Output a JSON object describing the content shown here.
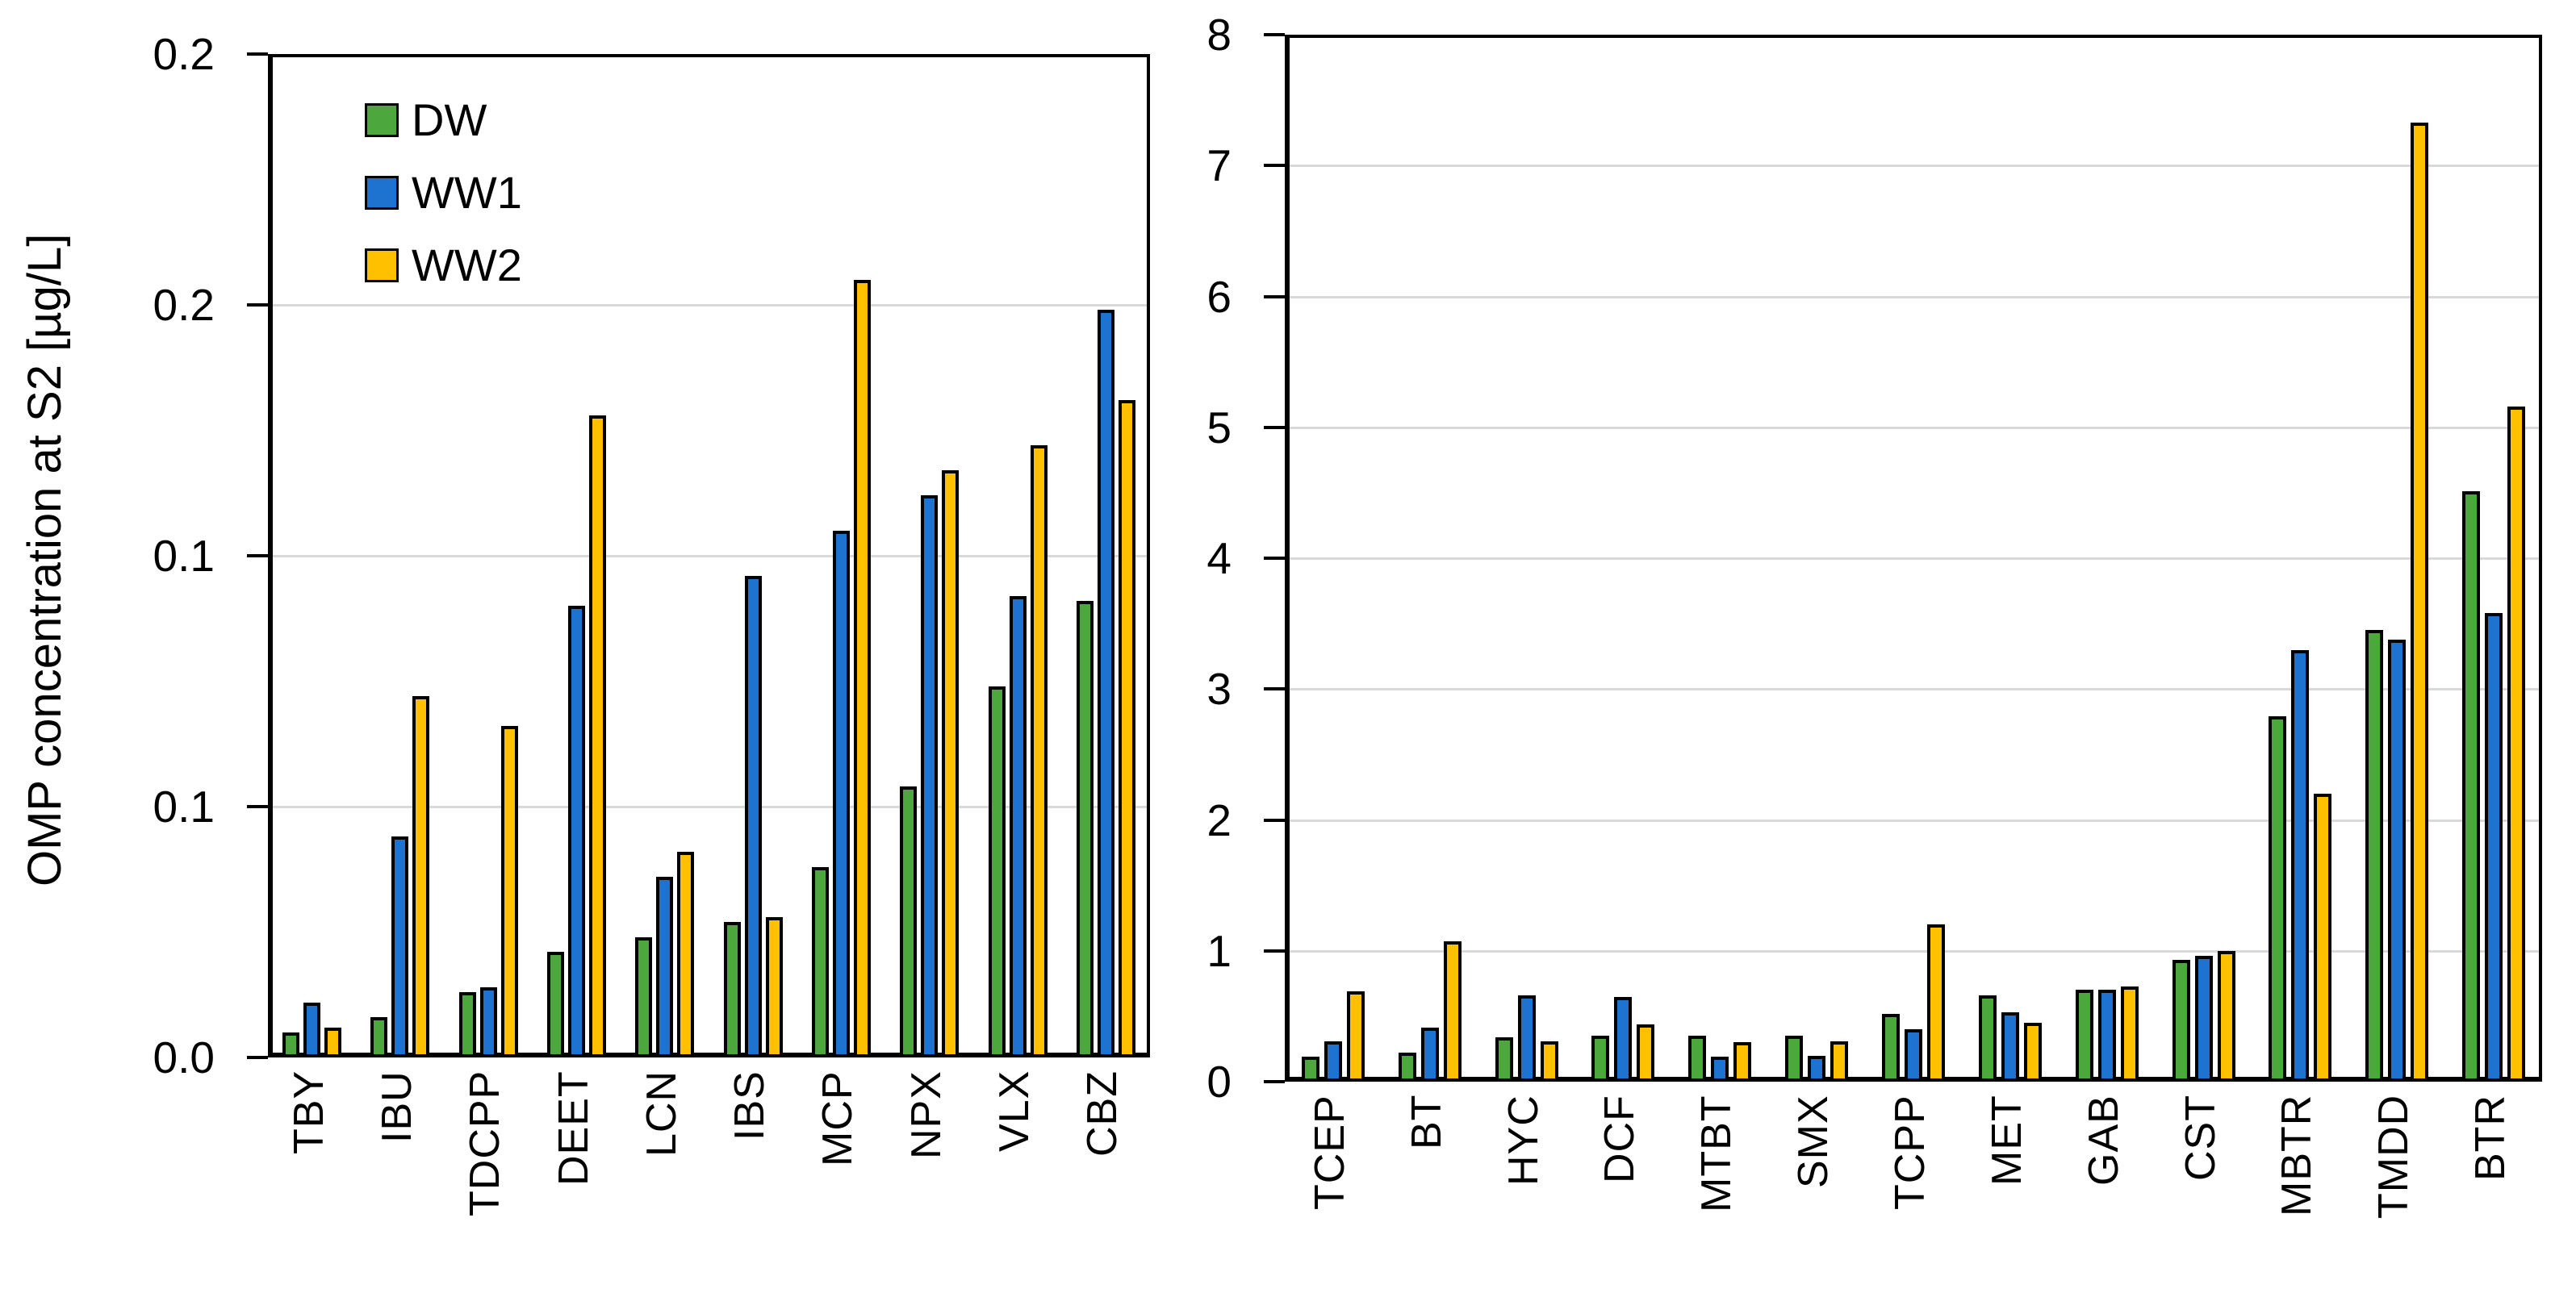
{
  "figure": {
    "ylabel": "OMP concentration at S2 [µg/L]"
  },
  "legend": {
    "position": "top-left-inside-left-panel",
    "items": [
      {
        "label": "DW",
        "color": "#4CA83D"
      },
      {
        "label": "WW1",
        "color": "#1E72D0"
      },
      {
        "label": "WW2",
        "color": "#FFC000"
      }
    ]
  },
  "colors": {
    "background": "#FFFFFF",
    "grid": "#D9D9D9",
    "axis": "#000000",
    "bar_border": "#000000",
    "green": "#4CA83D",
    "blue": "#1E72D0",
    "yellow": "#FFC000"
  },
  "chart_data": [
    {
      "type": "bar",
      "panel": "left",
      "title": "",
      "ylabel": "OMP concentration at S2 [µg/L]",
      "xlabel": "",
      "ylim": [
        0,
        0.2
      ],
      "ytick_values": [
        0,
        0.05,
        0.1,
        0.15,
        0.2
      ],
      "ytick_labels": [
        "0.0",
        "0.1",
        "0.1",
        "0.2",
        "0.2"
      ],
      "grid": true,
      "legend_position": "upper left",
      "categories": [
        "TBY",
        "IBU",
        "TDCPP",
        "DEET",
        "LCN",
        "IBS",
        "MCP",
        "NPX",
        "VLX",
        "CBZ"
      ],
      "series": [
        {
          "name": "DW",
          "color": "#4CA83D",
          "values": [
            0.005,
            0.008,
            0.013,
            0.021,
            0.024,
            0.027,
            0.038,
            0.054,
            0.074,
            0.091
          ]
        },
        {
          "name": "WW1",
          "color": "#1E72D0",
          "values": [
            0.011,
            0.044,
            0.014,
            0.09,
            0.036,
            0.096,
            0.105,
            0.112,
            0.092,
            0.149
          ]
        },
        {
          "name": "WW2",
          "color": "#FFC000",
          "values": [
            0.006,
            0.072,
            0.066,
            0.128,
            0.041,
            0.028,
            0.155,
            0.117,
            0.122,
            0.131
          ]
        }
      ]
    },
    {
      "type": "bar",
      "panel": "right",
      "title": "",
      "ylabel": "",
      "xlabel": "",
      "ylim": [
        0,
        8
      ],
      "ytick_values": [
        0,
        1,
        2,
        3,
        4,
        5,
        6,
        7,
        8
      ],
      "ytick_labels": [
        "0",
        "1",
        "2",
        "3",
        "4",
        "5",
        "6",
        "7",
        "8"
      ],
      "grid": true,
      "legend_position": "none",
      "categories": [
        "TCEP",
        "BT",
        "HYC",
        "DCF",
        "MTBT",
        "SMX",
        "TCPP",
        "MET",
        "GAB",
        "CST",
        "MBTR",
        "TMDD",
        "BTR"
      ],
      "series": [
        {
          "name": "DW",
          "color": "#4CA83D",
          "values": [
            0.19,
            0.22,
            0.34,
            0.35,
            0.35,
            0.35,
            0.52,
            0.66,
            0.7,
            0.93,
            2.79,
            3.45,
            4.51
          ]
        },
        {
          "name": "WW1",
          "color": "#1E72D0",
          "values": [
            0.31,
            0.41,
            0.66,
            0.65,
            0.19,
            0.2,
            0.4,
            0.53,
            0.7,
            0.96,
            3.3,
            3.38,
            3.58
          ]
        },
        {
          "name": "WW2",
          "color": "#FFC000",
          "values": [
            0.69,
            1.07,
            0.31,
            0.44,
            0.3,
            0.31,
            1.2,
            0.45,
            0.73,
            1.0,
            2.2,
            7.33,
            5.16
          ]
        }
      ]
    }
  ]
}
